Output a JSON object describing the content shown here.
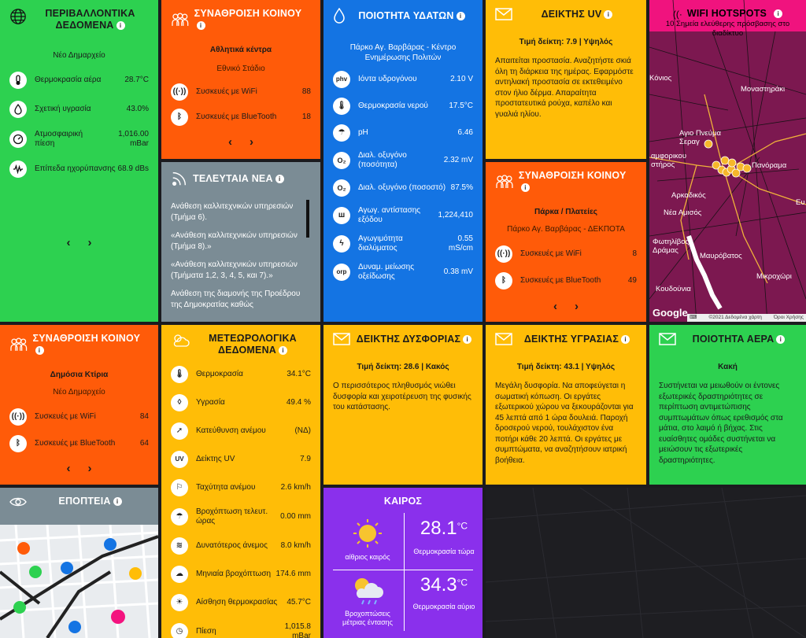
{
  "env": {
    "title": "ΠΕΡΙΒΑΛΛΟΝΤΙΚΑ ΔΕΔΟΜΕΝΑ",
    "location": "Νέο Δημαρχείο",
    "rows": [
      {
        "label": "Θερμοκρασία αέρα",
        "value": "28.7°C",
        "icon": "thermometer-icon"
      },
      {
        "label": "Σχετική υγρασία",
        "value": "43.0%",
        "icon": "drop-icon"
      },
      {
        "label": "Ατμοσφαιρική πίεση",
        "value": "1,016.00 mBar",
        "icon": "gauge-icon"
      },
      {
        "label": "Επίπεδα ηχορύπανσης",
        "value": "68.9 dBs",
        "icon": "sound-wave-icon"
      }
    ]
  },
  "crowd1": {
    "title": "ΣΥΝΑΘΡΟΙΣΗ ΚΟΙΝΟΥ",
    "category": "Αθλητικά κέντρα",
    "location": "Εθνικό Στάδιο",
    "wifi_label": "Συσκευές με WiFi",
    "wifi_value": "88",
    "bt_label": "Συσκευές με BlueTooth",
    "bt_value": "18"
  },
  "water": {
    "title": "ΠΟΙΟΤΗΤΑ ΥΔΑΤΩΝ",
    "location": "Πάρκο Αγ. Βαρβάρας - Κέντρο Ενημέρωσης Πολιτών",
    "rows": [
      {
        "badge": "phv",
        "label": "Ιόντα υδρογόνου",
        "value": "2.10 V"
      },
      {
        "badge": "🌡",
        "label": "Θερμοκρασία νερού",
        "value": "17.5°C"
      },
      {
        "badge": "☂",
        "label": "pH",
        "value": "6.46"
      },
      {
        "badge": "O₂",
        "label": "Διαλ. οξυγόνο (ποσότητα)",
        "value": "2.32 mV"
      },
      {
        "badge": "O₂",
        "label": "Διαλ. οξυγόνο (ποσοστό)",
        "value": "87.5%"
      },
      {
        "badge": "ш",
        "label": "Αγωγ. αντίστασης εξόδου",
        "value": "1,224,410"
      },
      {
        "badge": "ϟ",
        "label": "Αγωγιμότητα διαλύματος",
        "value": "0.55 mS/cm"
      },
      {
        "badge": "orp",
        "label": "Δυναμ. μείωσης οξείδωσης",
        "value": "0.38 mV"
      }
    ]
  },
  "uv": {
    "title": "ΔΕΙΚΤΗΣ UV",
    "index": "Τιμή δείκτη: 7.9 | Υψηλός",
    "text": "Απαιτείται προστασία. Αναζητήστε σκιά όλη τη διάρκεια της ημέρας. Εφαρμόστε αντηλιακή προστασία σε εκτεθειμένο στον ήλιο δέρμα. Απαραίτητα προστατευτικά ρούχα, καπέλο και γυαλιά ηλίου."
  },
  "wifi": {
    "title": "WIFI HOTSPOTS",
    "subtitle": "10 Σημεία ελεύθερης πρόσβασης στο διαδίκτυο",
    "places": [
      "Κόνιος",
      "Αγιο Πνεύμα Σεραγ",
      "Μοναστηράκι",
      "αμφορικου στήρος",
      "Πανόραμα",
      "Αρκαδικός",
      "Νέα Αμισός",
      "Φωτηλίβος Δράμας",
      "Μαυρόβατος",
      "Μικροχώρι",
      "Κουδούνια",
      "Ευ"
    ],
    "google": "Google",
    "footer": "©2021 Δεδομένα χάρτη",
    "terms": "Όροι Χρήσης"
  },
  "news": {
    "title": "ΤΕΛΕΥΤΑΙΑ ΝΕΑ",
    "items": [
      "Ανάθεση καλλιτεχνικών υπηρεσιών (Τμήμα 6).",
      "«Ανάθεση καλλιτεχνικών υπηρεσιών (Τμήμα 8).»",
      "«Ανάθεση καλλιτεχνικών υπηρεσιών (Τμήματα 1,2, 3, 4, 5, και 7).»",
      "Ανάθεση της διαμονής της Προέδρου της Δημοκρατίας καθώς"
    ]
  },
  "crowd2": {
    "title": "ΣΥΝΑΘΡΟΙΣΗ ΚΟΙΝΟΥ",
    "category": "Πάρκα / Πλατείες",
    "location": "Πάρκο Αγ. Βαρβάρας - ΔΕΚΠΟΤΑ",
    "wifi_label": "Συσκευές με WiFi",
    "wifi_value": "8",
    "bt_label": "Συσκευές με BlueTooth",
    "bt_value": "49"
  },
  "crowd3": {
    "title": "ΣΥΝΑΘΡΟΙΣΗ ΚΟΙΝΟΥ",
    "category": "Δημόσια Κτίρια",
    "location": "Νέο Δημαρχείο",
    "wifi_label": "Συσκευές με WiFi",
    "wifi_value": "84",
    "bt_label": "Συσκευές με BlueTooth",
    "bt_value": "64"
  },
  "meteo": {
    "title": "ΜΕΤΕΩΡΟΛΟΓΙΚΑ ΔΕΔΟΜΕΝΑ",
    "rows": [
      {
        "label": "Θερμοκρασία",
        "value": "34.1°C"
      },
      {
        "label": "Υγρασία",
        "value": "49.4 %"
      },
      {
        "label": "Κατεύθυνση ανέμου",
        "value": "(ΝΔ)"
      },
      {
        "label": "Δείκτης UV",
        "value": "7.9"
      },
      {
        "label": "Ταχύτητα ανέμου",
        "value": "2.6 km/h"
      },
      {
        "label": "Βροχόπτωση τελευτ. ώρας",
        "value": "0.00 mm"
      },
      {
        "label": "Δυνατότερος άνεμος",
        "value": "8.0 km/h"
      },
      {
        "label": "Μηνιαία βροχόπτωση",
        "value": "174.6 mm"
      },
      {
        "label": "Αίσθηση θερμοκρασίας",
        "value": "45.7°C"
      },
      {
        "label": "Πίεση",
        "value": "1,015.8 mBar"
      }
    ]
  },
  "discomfort": {
    "title": "ΔΕΙΚΤΗΣ ΔΥΣΦΟΡΙΑΣ",
    "index": "Τιμή δείκτη: 28.6 | Κακός",
    "text": "Ο περισσότερος πληθυσμός νιώθει δυσφορία και χειροτέρευση της φυσικής του κατάστασης."
  },
  "humidity": {
    "title": "ΔΕΙΚΤΗΣ ΥΓΡΑΣΙΑΣ",
    "index": "Τιμή δείκτη: 43.1 | Υψηλός",
    "text": "Μεγάλη δυσφορία. Να αποφεύγεται η σωματική κόπωση. Οι εργάτες εξωτερικού χώρου να ξεκουράζονται για 45 λεπτά από 1 ώρα δουλειά. Παροχή δροσερού νερού, τουλάχιστον ένα ποτήρι κάθε 20 λεπτά. Οι εργάτες με συμπτώματα, να αναζητήσουν ιατρική βοήθεια."
  },
  "air": {
    "title": "ΠΟΙΟΤΗΤΑ ΑΕΡΑ",
    "status": "Κακή",
    "text": "Συστήνεται να μειωθούν οι έντονες εξωτερικές δραστηριότητες σε περίπτωση αντιμετώπισης συμπτωμάτων όπως ερεθισμός στα μάτια, στο λαιμό ή βήχας. Στις ευαίσθητες ομάδες συστήνεται να μειώσουν τις εξωτερικές δραστηριότητες."
  },
  "surveillance": {
    "title": "ΕΠΟΠΤΕΙΑ"
  },
  "weather": {
    "title": "ΚΑΙΡΟΣ",
    "now_desc": "αίθριος καιρός",
    "now_temp": "28.1",
    "now_unit": "°C",
    "now_label": "Θερμοκρασία τώρα",
    "tomorrow_desc": "Βροχοπτώσεις μέτριας έντασης",
    "tomorrow_temp": "34.3",
    "tomorrow_unit": "°C",
    "tomorrow_label": "Θερμοκρασία αύριο"
  },
  "nav": {
    "prev": "‹",
    "next": "›"
  },
  "info_glyph": "i"
}
